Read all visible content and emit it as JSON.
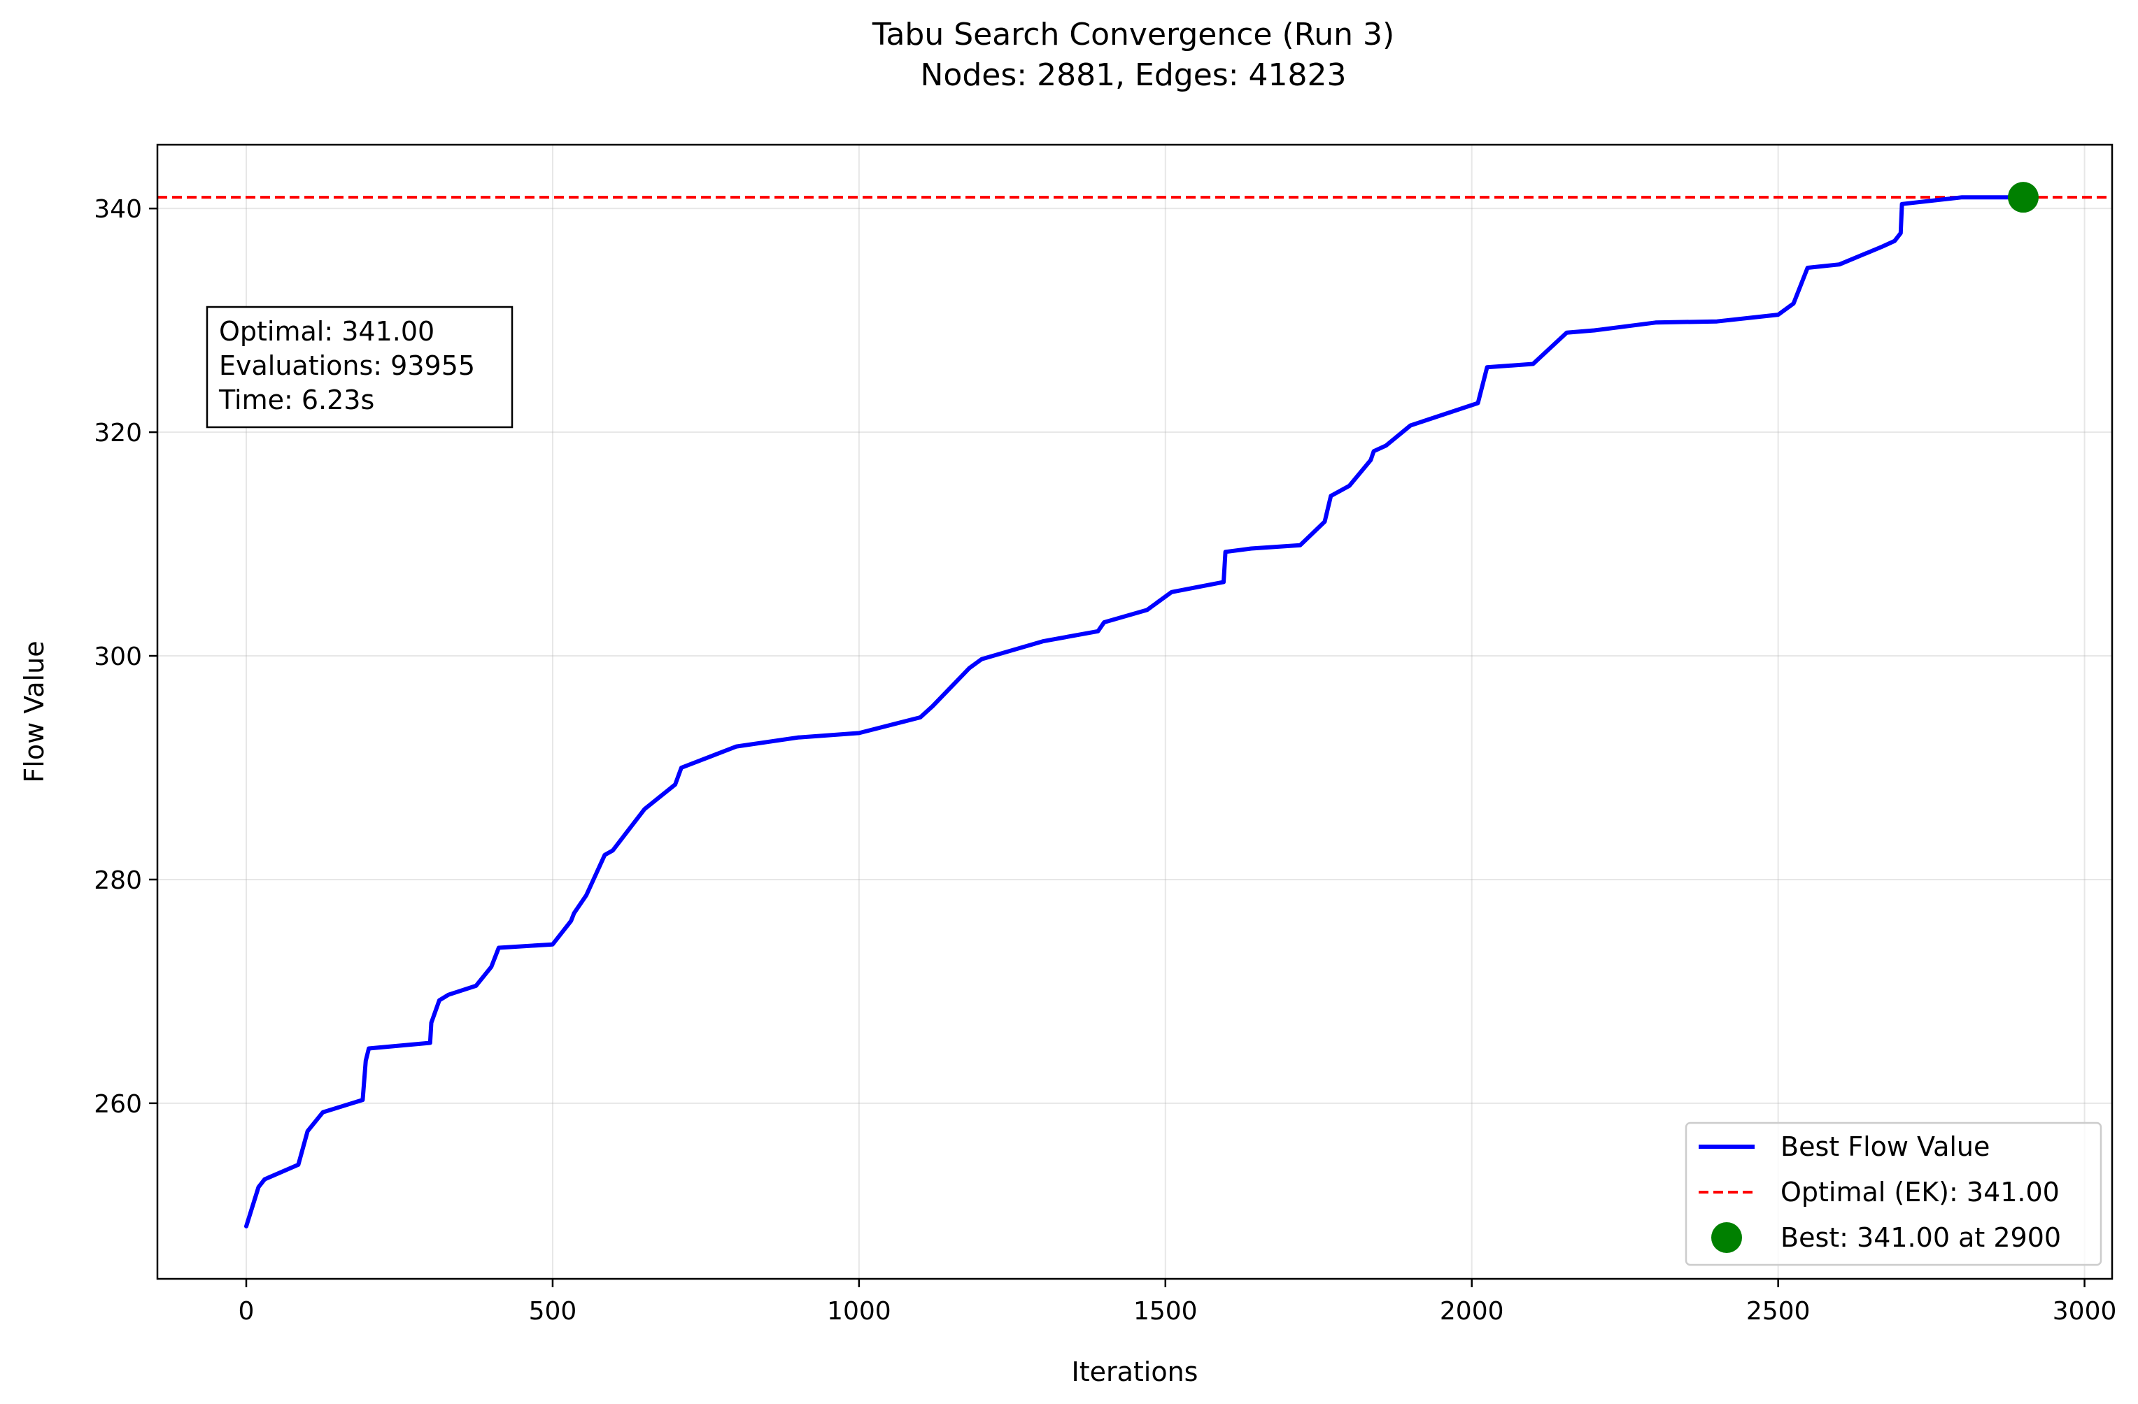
{
  "chart_data": {
    "type": "line",
    "title": "Tabu Search Convergence (Run 3)",
    "subtitle": "Nodes: 2881, Edges: 41823",
    "xlabel": "Iterations",
    "ylabel": "Flow Value",
    "xlim": [
      -145,
      3045
    ],
    "ylim": [
      244.3,
      345.7
    ],
    "xticks": [
      0,
      500,
      1000,
      1500,
      2000,
      2500,
      3000
    ],
    "yticks": [
      260,
      280,
      300,
      320,
      340
    ],
    "grid": true,
    "legend_position": "lower-right",
    "annotation": [
      "Optimal: 341.00",
      "Evaluations: 93955",
      "Time: 6.23s"
    ],
    "series": [
      {
        "name": "Best Flow Value",
        "style": "solid",
        "color": "#0000ff",
        "x": [
          0,
          20,
          30,
          85,
          100,
          125,
          190,
          195,
          200,
          300,
          302,
          315,
          330,
          375,
          400,
          412,
          500,
          530,
          535,
          555,
          585,
          598,
          650,
          700,
          710,
          800,
          900,
          1000,
          1100,
          1120,
          1180,
          1200,
          1300,
          1390,
          1400,
          1470,
          1510,
          1595,
          1598,
          1640,
          1720,
          1760,
          1770,
          1800,
          1835,
          1840,
          1860,
          1900,
          2010,
          2025,
          2100,
          2155,
          2200,
          2300,
          2400,
          2500,
          2525,
          2548,
          2600,
          2670,
          2690,
          2700,
          2702,
          2800,
          2900
        ],
        "y": [
          249,
          252.5,
          253.2,
          254.5,
          257.5,
          259.2,
          260.3,
          263.8,
          264.9,
          265.4,
          267.2,
          269.2,
          269.7,
          270.5,
          272.2,
          273.9,
          274.2,
          276.3,
          277.0,
          278.6,
          282.2,
          282.6,
          286.3,
          288.5,
          290.0,
          291.9,
          292.7,
          293.1,
          294.5,
          295.5,
          298.9,
          299.7,
          301.3,
          302.2,
          303.0,
          304.1,
          305.7,
          306.6,
          309.3,
          309.6,
          309.9,
          312.0,
          314.3,
          315.2,
          317.5,
          318.3,
          318.8,
          320.6,
          322.6,
          325.8,
          326.1,
          328.9,
          329.1,
          329.8,
          329.9,
          330.5,
          331.5,
          334.7,
          335.0,
          336.6,
          337.1,
          337.8,
          340.4,
          341.0,
          341.0
        ]
      },
      {
        "name": "Optimal (EK): 341.00",
        "style": "dashed",
        "color": "#ff0000",
        "y": 341.0
      },
      {
        "name": "Best: 341.00 at 2900",
        "style": "marker",
        "color": "#008000",
        "x": [
          2900
        ],
        "y": [
          341.0
        ]
      }
    ]
  }
}
